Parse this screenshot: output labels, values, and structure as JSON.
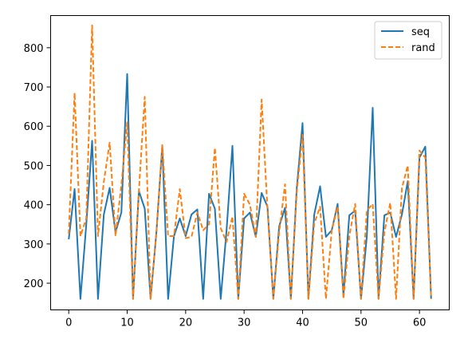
{
  "chart_data": {
    "type": "line",
    "title": "",
    "xlabel": "",
    "ylabel": "",
    "xlim": [
      -3.1,
      65.1
    ],
    "ylim": [
      132,
      882
    ],
    "xticks": [
      0,
      10,
      20,
      30,
      40,
      50,
      60
    ],
    "yticks": [
      200,
      300,
      400,
      500,
      600,
      700,
      800
    ],
    "grid": false,
    "legend_position": "top-right",
    "x": [
      0,
      1,
      2,
      3,
      4,
      5,
      6,
      7,
      8,
      9,
      10,
      11,
      12,
      13,
      14,
      15,
      16,
      17,
      18,
      19,
      20,
      21,
      22,
      23,
      24,
      25,
      26,
      27,
      28,
      29,
      30,
      31,
      32,
      33,
      34,
      35,
      36,
      37,
      38,
      39,
      40,
      41,
      42,
      43,
      44,
      45,
      46,
      47,
      48,
      49,
      50,
      51,
      52,
      53,
      54,
      55,
      56,
      57,
      58,
      59,
      60,
      61,
      62
    ],
    "series": [
      {
        "name": "seq",
        "color": "#1f77b4",
        "style": "solid",
        "values": [
          312,
          440,
          160,
          350,
          563,
          160,
          375,
          443,
          330,
          380,
          733,
          160,
          435,
          390,
          160,
          330,
          550,
          160,
          320,
          365,
          320,
          375,
          388,
          160,
          428,
          390,
          160,
          335,
          550,
          160,
          365,
          380,
          318,
          430,
          395,
          160,
          345,
          392,
          160,
          440,
          608,
          160,
          375,
          447,
          318,
          335,
          402,
          170,
          373,
          385,
          160,
          320,
          647,
          160,
          373,
          380,
          318,
          375,
          460,
          160,
          520,
          548,
          160
        ]
      },
      {
        "name": "rand",
        "color": "#ff7f0e",
        "style": "dashed",
        "values": [
          325,
          685,
          320,
          365,
          857,
          320,
          458,
          558,
          320,
          450,
          610,
          160,
          435,
          675,
          160,
          330,
          552,
          320,
          320,
          440,
          315,
          318,
          380,
          335,
          350,
          545,
          340,
          305,
          370,
          160,
          428,
          400,
          318,
          668,
          388,
          160,
          330,
          452,
          160,
          430,
          578,
          160,
          352,
          395,
          160,
          335,
          395,
          160,
          320,
          402,
          160,
          385,
          402,
          160,
          330,
          405,
          160,
          442,
          500,
          160,
          538,
          520,
          160
        ]
      }
    ]
  }
}
